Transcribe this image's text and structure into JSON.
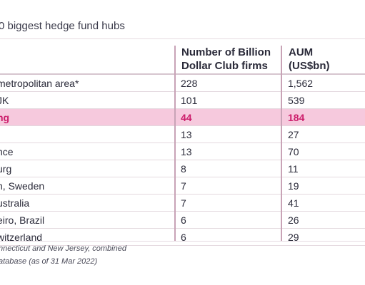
{
  "title": "0 biggest hedge fund hubs",
  "table": {
    "headers": {
      "city": "",
      "count_line1": "Number of Billion",
      "count_line2": "Dollar Club firms",
      "aum_line1": "AUM",
      "aum_line2": "(US$bn)"
    },
    "rows": [
      {
        "city": "metropolitan area*",
        "count": "228",
        "aum": "1,562",
        "highlight": false
      },
      {
        "city": "JK",
        "count": "101",
        "aum": "539",
        "highlight": false
      },
      {
        "city": "ng",
        "count": "44",
        "aum": "184",
        "highlight": true
      },
      {
        "city": "",
        "count": "13",
        "aum": "27",
        "highlight": false
      },
      {
        "city": "nce",
        "count": "13",
        "aum": "70",
        "highlight": false
      },
      {
        "city": "urg",
        "count": "8",
        "aum": "11",
        "highlight": false
      },
      {
        "city": "n, Sweden",
        "count": "7",
        "aum": "19",
        "highlight": false
      },
      {
        "city": "ustralia",
        "count": "7",
        "aum": "41",
        "highlight": false
      },
      {
        "city": "eiro, Brazil",
        "count": "6",
        "aum": "26",
        "highlight": false
      },
      {
        "city": "witzerland",
        "count": "6",
        "aum": "29",
        "highlight": false
      }
    ]
  },
  "footnotes": {
    "line1": "nnecticut and New Jersey, combined",
    "line2": "atabase (as of 31 Mar 2022)"
  },
  "colors": {
    "highlight_bg": "#f6c9dd",
    "highlight_text": "#cc1d6b",
    "divider": "#c8a3b6"
  }
}
